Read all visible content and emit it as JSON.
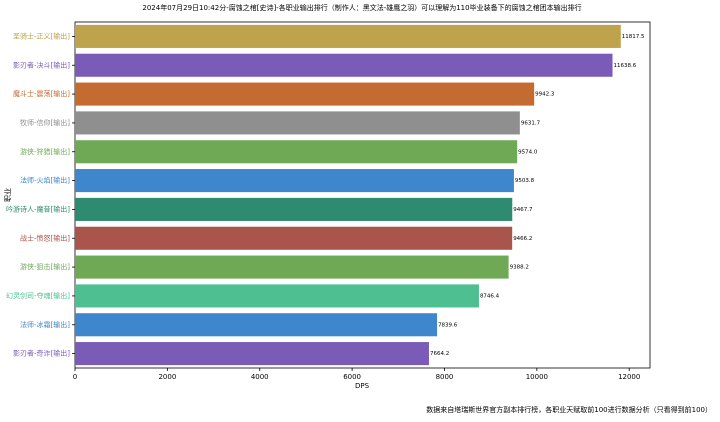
{
  "chart_data": {
    "type": "barh",
    "title": "2024年07月29日10:42分-腐蚀之棺[史诗]-各职业输出排行（制作人：黑文法-雄鹰之羽）可以理解为110毕业装备下的腐蚀之棺团本输出排行",
    "xlabel": "DPS",
    "ylabel": "职业",
    "footnote": "数据来自塔瑞斯世界官方副本排行榜，各职业天赋取前100进行数据分析（只看得到前100）",
    "categories": [
      "圣骑士-正义[输出]",
      "影刃者-决斗[输出]",
      "魔斗士-震荡[输出]",
      "牧师-信仰[输出]",
      "游侠-狩猎[输出]",
      "法师-火焰[输出]",
      "吟游诗人-魔音[输出]",
      "战士-愤怒[输出]",
      "游侠-狙击[输出]",
      "幻灵剑司-夺魂[输出]",
      "法师-冰霜[输出]",
      "影刃者-奇诈[输出]"
    ],
    "values": [
      11817.5,
      11638.6,
      9942.3,
      9631.7,
      9574.0,
      9503.8,
      9467.7,
      9466.2,
      9388.2,
      8746.4,
      7839.6,
      7664.2
    ],
    "value_labels": [
      "11817.5",
      "11638.6",
      "9942.3",
      "9631.7",
      "9574.0",
      "9503.8",
      "9467.7",
      "9466.2",
      "9388.2",
      "8746.4",
      "7839.6",
      "7664.2"
    ],
    "colors": [
      "#bfa24c",
      "#7a5cb8",
      "#c46b32",
      "#8f8f8f",
      "#6fa956",
      "#3f87cc",
      "#2e8b70",
      "#a9554b",
      "#6fa956",
      "#4dbf90",
      "#3f87cc",
      "#7a5cb8"
    ],
    "xlim": [
      0,
      12450
    ],
    "xticks": [
      0,
      2000,
      4000,
      6000,
      8000,
      10000,
      12000
    ]
  }
}
